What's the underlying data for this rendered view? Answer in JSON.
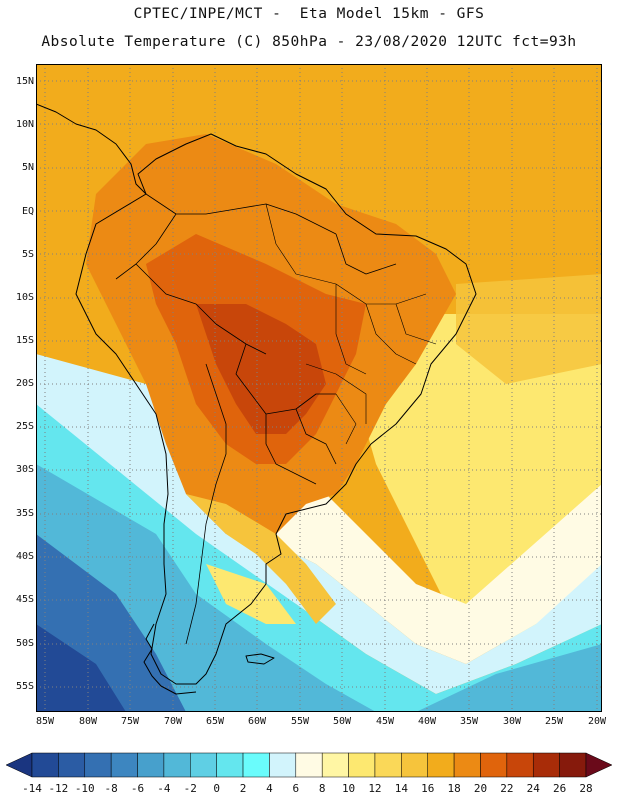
{
  "title": {
    "line1": "CPTEC/INPE/MCT -  Eta Model 15km - GFS",
    "line2": "Absolute Temperature (C) 850hPa - 23/08/2020 12UTC fct=93h"
  },
  "lat_labels": [
    "15N",
    "10N",
    "5N",
    "EQ",
    "5S",
    "10S",
    "15S",
    "20S",
    "25S",
    "30S",
    "35S",
    "40S",
    "45S",
    "50S",
    "55S"
  ],
  "lon_labels": [
    "85W",
    "80W",
    "75W",
    "70W",
    "65W",
    "60W",
    "55W",
    "50W",
    "45W",
    "40W",
    "35W",
    "30W",
    "25W",
    "20W"
  ],
  "colorbar": {
    "labels": [
      "-14",
      "-12",
      "-10",
      "-8",
      "-6",
      "-4",
      "-2",
      "0",
      "2",
      "4",
      "6",
      "8",
      "10",
      "12",
      "14",
      "16",
      "18",
      "20",
      "22",
      "24",
      "26",
      "28"
    ],
    "under_color": "#1a3580",
    "over_color": "#6a0a1a",
    "colors": [
      "#224a96",
      "#2b5ca4",
      "#3470b2",
      "#3d86c0",
      "#47a0cc",
      "#52b8d8",
      "#5fcfe4",
      "#64e6ee",
      "#6afcfc",
      "#d2f4fc",
      "#fffbe4",
      "#fff6a4",
      "#fde870",
      "#fad858",
      "#f6c43c",
      "#f2ac1c",
      "#ec8a14",
      "#e0640c",
      "#c8460a",
      "#a82c08",
      "#861a0c"
    ]
  },
  "map_colors": {
    "ocean_cold": "#52b8d8",
    "ocean_mid": "#64e6ee",
    "ocean_pale": "#d2f4fc",
    "ocean_cream": "#fffbe4",
    "ocean_deep": "#3470b2",
    "ocean_deepest": "#224a96",
    "atlantic_yellow": "#fde870",
    "atlantic_gold": "#f6c43c",
    "tropics": "#f2ac1c",
    "land_warm": "#ec8a14",
    "land_hot": "#e0640c",
    "land_hottest": "#c8460a",
    "grid": "#808080",
    "coast": "#000000"
  }
}
